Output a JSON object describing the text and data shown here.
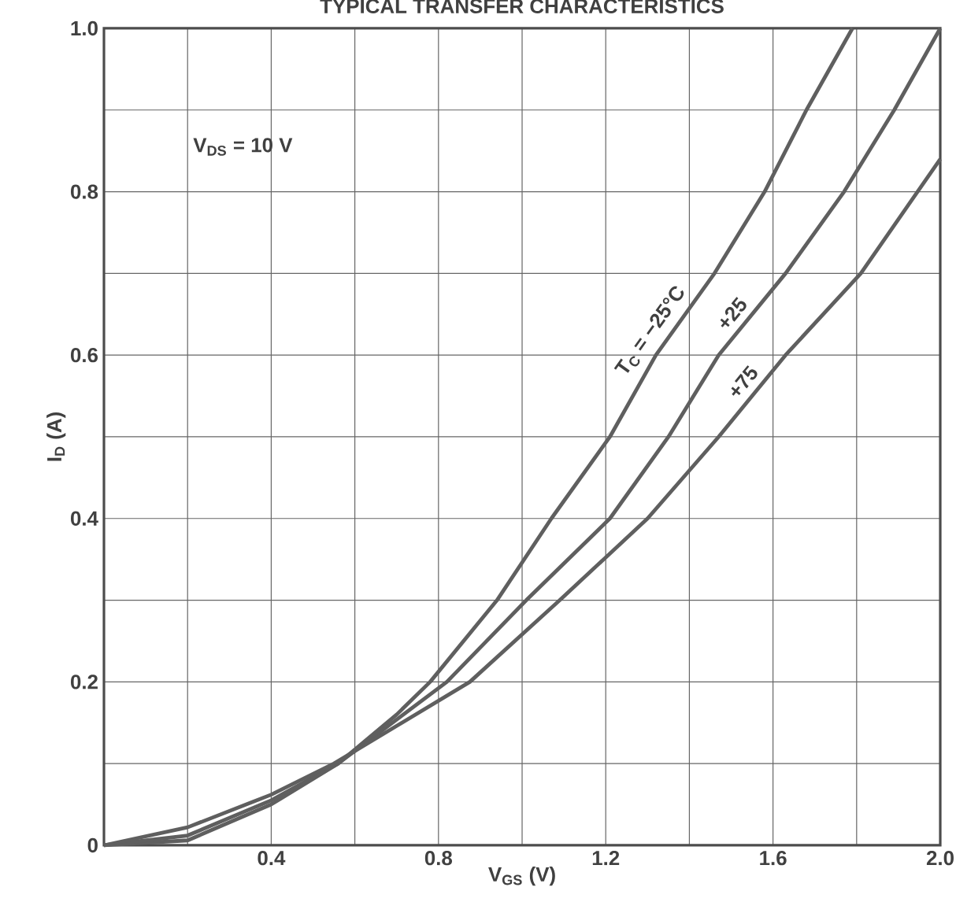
{
  "chart_data": {
    "type": "line",
    "title": "TYPICAL TRANSFER CHARACTERISTICS",
    "xlabel": "V$_{GS}$ (V)",
    "ylabel": "I$_{D}$ (A)",
    "annotations": [
      "V$_{DS}$ = 10 V"
    ],
    "xlim": [
      0,
      2.0
    ],
    "ylim": [
      0,
      1.0
    ],
    "xticks": [
      {
        "value": 0.2,
        "label": null
      },
      0.4,
      {
        "value": 0.6,
        "label": null
      },
      0.8,
      {
        "value": 1.0,
        "label": null
      },
      1.2,
      {
        "value": 1.4,
        "label": null
      },
      1.6,
      {
        "value": 1.8,
        "label": null
      },
      {
        "value": 2.0,
        "label": "2.0"
      }
    ],
    "yticks": [
      0,
      {
        "value": 0.1,
        "label": null
      },
      0.2,
      {
        "value": 0.3,
        "label": null
      },
      0.4,
      {
        "value": 0.5,
        "label": null
      },
      0.6,
      {
        "value": 0.7,
        "label": null
      },
      0.8,
      {
        "value": 0.9,
        "label": null
      },
      {
        "value": 1.0,
        "label": "1.0"
      }
    ],
    "grid": true,
    "line_style": "solid",
    "marker": "none",
    "series": [
      {
        "name": "T$_{C}$ = −25°C",
        "color": "#5f5f5f",
        "x": [
          0,
          0.2,
          0.4,
          0.56,
          0.7,
          0.78,
          0.94,
          1.07,
          1.21,
          1.32,
          1.46,
          1.58,
          1.68,
          1.79
        ],
        "values": [
          0,
          0.006,
          0.05,
          0.1,
          0.16,
          0.2,
          0.3,
          0.4,
          0.5,
          0.6,
          0.7,
          0.8,
          0.9,
          1.0
        ]
      },
      {
        "name": "+25",
        "color": "#5f5f5f",
        "x": [
          0,
          0.2,
          0.4,
          0.56,
          0.82,
          1.01,
          1.21,
          1.35,
          1.47,
          1.63,
          1.77,
          1.89,
          2.0
        ],
        "values": [
          0,
          0.012,
          0.055,
          0.1,
          0.2,
          0.3,
          0.4,
          0.5,
          0.6,
          0.7,
          0.8,
          0.9,
          1.0
        ]
      },
      {
        "name": "+75",
        "color": "#5f5f5f",
        "x": [
          0,
          0.2,
          0.4,
          0.55,
          0.875,
          1.09,
          1.3,
          1.47,
          1.63,
          1.81,
          2.0
        ],
        "values": [
          0,
          0.022,
          0.062,
          0.1,
          0.2,
          0.3,
          0.4,
          0.5,
          0.6,
          0.7,
          0.84
        ]
      }
    ]
  }
}
